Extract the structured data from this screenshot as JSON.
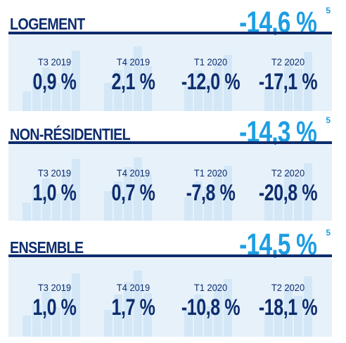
{
  "sections": [
    {
      "title": "LOGEMENT",
      "total": "-14,6 %",
      "footnote": "5",
      "items": [
        {
          "period": "T3 2019",
          "value": "0,9 %"
        },
        {
          "period": "T4 2019",
          "value": "2,1 %"
        },
        {
          "period": "T1 2020",
          "value": "-12,0 %"
        },
        {
          "period": "T2 2020",
          "value": "-17,1 %"
        }
      ]
    },
    {
      "title": "NON-RÉSIDENTIEL",
      "total": "-14,3 %",
      "footnote": "5",
      "items": [
        {
          "period": "T3 2019",
          "value": "1,0 %"
        },
        {
          "period": "T4 2019",
          "value": "0,7 %"
        },
        {
          "period": "T1 2020",
          "value": "-7,8 %"
        },
        {
          "period": "T2 2020",
          "value": "-20,8 %"
        }
      ]
    },
    {
      "title": "ENSEMBLE",
      "total": "-14,5 %",
      "footnote": "5",
      "items": [
        {
          "period": "T3 2019",
          "value": "1,0 %"
        },
        {
          "period": "T4 2019",
          "value": "1,7 %"
        },
        {
          "period": "T1 2020",
          "value": "-10,8 %"
        },
        {
          "period": "T2 2020",
          "value": "-18,1 %"
        }
      ]
    }
  ],
  "colors": {
    "navy": "#0e2d6e",
    "accent": "#1d9ee3",
    "panel": "#e6f1fa"
  }
}
